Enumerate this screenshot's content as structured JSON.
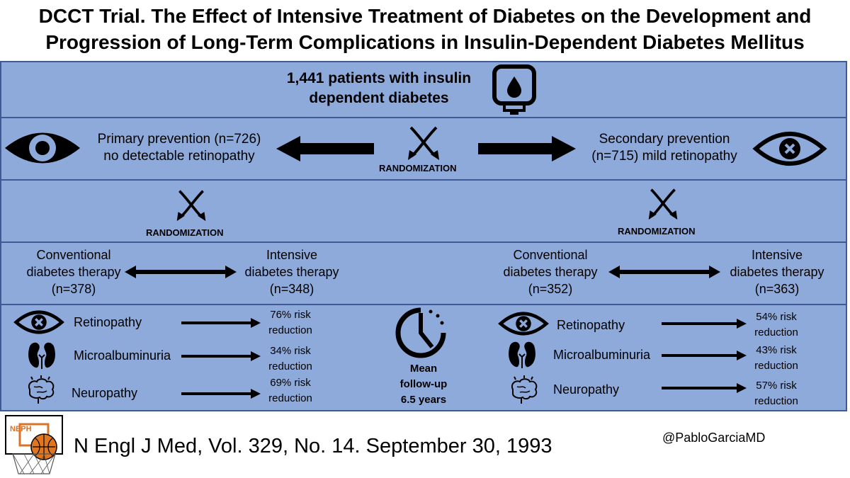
{
  "title_line1": "DCCT Trial. The Effect of Intensive Treatment of Diabetes on the Development and",
  "title_line2": "Progression of Long-Term Complications in Insulin-Dependent Diabetes Mellitus",
  "patients": {
    "line1": "1,441 patients with insulin",
    "line2": "dependent diabetes",
    "icon": "glucometer-icon"
  },
  "randomization_label": "RANDOMIZATION",
  "primary": {
    "line1": "Primary prevention (n=726)",
    "line2": "no detectable retinopathy",
    "icon": "eye-icon"
  },
  "secondary": {
    "line1": "Secondary prevention",
    "line2": "(n=715) mild retinopathy",
    "icon": "eye-cross-icon"
  },
  "left_groups": {
    "conventional": {
      "line1": "Conventional",
      "line2": "diabetes therapy",
      "line3": "(n=378)"
    },
    "intensive": {
      "line1": "Intensive",
      "line2": "diabetes therapy",
      "line3": "(n=348)"
    }
  },
  "right_groups": {
    "conventional": {
      "line1": "Conventional",
      "line2": "diabetes therapy",
      "line3": "(n=352)"
    },
    "intensive": {
      "line1": "Intensive",
      "line2": "diabetes therapy",
      "line3": "(n=363)"
    }
  },
  "outcomes_left": [
    {
      "name": "Retinopathy",
      "pct": "76% risk",
      "red": "reduction",
      "icon": "eye-cross-icon"
    },
    {
      "name": "Microalbuminuria",
      "pct": "34% risk",
      "red": "reduction",
      "icon": "kidney-icon"
    },
    {
      "name": "Neuropathy",
      "pct": "69% risk",
      "red": "reduction",
      "icon": "brain-icon"
    }
  ],
  "outcomes_right": [
    {
      "name": "Retinopathy",
      "pct": "54% risk",
      "red": "reduction",
      "icon": "eye-cross-icon"
    },
    {
      "name": "Microalbuminuria",
      "pct": "43% risk",
      "red": "reduction",
      "icon": "kidney-icon"
    },
    {
      "name": "Neuropathy",
      "pct": "57% risk",
      "red": "reduction",
      "icon": "brain-icon"
    }
  ],
  "followup": {
    "line1": "Mean",
    "line2": "follow-up",
    "line3": "6.5 years",
    "icon": "clock-icon"
  },
  "reference": "N Engl J Med, Vol. 329, No. 14. September 30, 1993",
  "handle": "@PabloGarciaMD",
  "logo": {
    "text": "NEPH",
    "icon": "basketball-hoop-logo"
  }
}
